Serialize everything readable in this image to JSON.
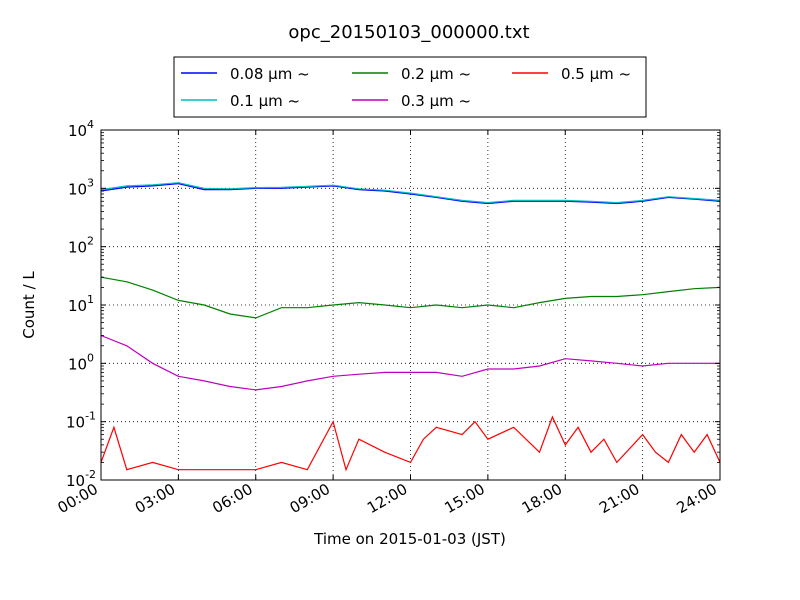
{
  "chart_data": {
    "type": "line",
    "title": "opc_20150103_000000.txt",
    "xlabel": "Time on 2015-01-03 (JST)",
    "ylabel": "Count / L",
    "yscale": "log",
    "xlim": [
      "00:00",
      "24:00"
    ],
    "ylim": [
      0.01,
      10000
    ],
    "x_ticks": [
      "00:00",
      "03:00",
      "06:00",
      "09:00",
      "12:00",
      "15:00",
      "18:00",
      "21:00",
      "24:00"
    ],
    "y_ticks": [
      {
        "base": "10",
        "exp": "-2",
        "value": 0.01
      },
      {
        "base": "10",
        "exp": "-1",
        "value": 0.1
      },
      {
        "base": "10",
        "exp": "0",
        "value": 1
      },
      {
        "base": "10",
        "exp": "1",
        "value": 10
      },
      {
        "base": "10",
        "exp": "2",
        "value": 100
      },
      {
        "base": "10",
        "exp": "3",
        "value": 1000
      },
      {
        "base": "10",
        "exp": "4",
        "value": 10000
      }
    ],
    "grid": true,
    "legend_position": "top-center",
    "series": [
      {
        "name": "0.08 μm ~",
        "color": "#0000ff",
        "points": [
          [
            "00:00",
            900
          ],
          [
            "01:00",
            1050
          ],
          [
            "02:00",
            1100
          ],
          [
            "03:00",
            1200
          ],
          [
            "04:00",
            950
          ],
          [
            "05:00",
            950
          ],
          [
            "06:00",
            1000
          ],
          [
            "07:00",
            1000
          ],
          [
            "08:00",
            1050
          ],
          [
            "09:00",
            1100
          ],
          [
            "10:00",
            950
          ],
          [
            "11:00",
            900
          ],
          [
            "12:00",
            800
          ],
          [
            "13:00",
            700
          ],
          [
            "14:00",
            600
          ],
          [
            "15:00",
            550
          ],
          [
            "16:00",
            600
          ],
          [
            "17:00",
            600
          ],
          [
            "18:00",
            600
          ],
          [
            "19:00",
            580
          ],
          [
            "20:00",
            550
          ],
          [
            "21:00",
            600
          ],
          [
            "22:00",
            700
          ],
          [
            "23:00",
            650
          ],
          [
            "24:00",
            600
          ]
        ]
      },
      {
        "name": "0.1 μm ~",
        "color": "#00bfbf",
        "points": [
          [
            "00:00",
            950
          ],
          [
            "01:00",
            1100
          ],
          [
            "02:00",
            1150
          ],
          [
            "03:00",
            1250
          ],
          [
            "04:00",
            1000
          ],
          [
            "05:00",
            980
          ],
          [
            "06:00",
            1030
          ],
          [
            "07:00",
            1040
          ],
          [
            "08:00",
            1080
          ],
          [
            "09:00",
            1130
          ],
          [
            "10:00",
            980
          ],
          [
            "11:00",
            930
          ],
          [
            "12:00",
            830
          ],
          [
            "13:00",
            720
          ],
          [
            "14:00",
            620
          ],
          [
            "15:00",
            570
          ],
          [
            "16:00",
            620
          ],
          [
            "17:00",
            620
          ],
          [
            "18:00",
            620
          ],
          [
            "19:00",
            600
          ],
          [
            "20:00",
            570
          ],
          [
            "21:00",
            620
          ],
          [
            "22:00",
            720
          ],
          [
            "23:00",
            670
          ],
          [
            "24:00",
            620
          ]
        ]
      },
      {
        "name": "0.2 μm ~",
        "color": "#008000",
        "points": [
          [
            "00:00",
            30
          ],
          [
            "01:00",
            25
          ],
          [
            "02:00",
            18
          ],
          [
            "03:00",
            12
          ],
          [
            "04:00",
            10
          ],
          [
            "05:00",
            7
          ],
          [
            "06:00",
            6
          ],
          [
            "07:00",
            9
          ],
          [
            "08:00",
            9
          ],
          [
            "09:00",
            10
          ],
          [
            "10:00",
            11
          ],
          [
            "11:00",
            10
          ],
          [
            "12:00",
            9
          ],
          [
            "13:00",
            10
          ],
          [
            "14:00",
            9
          ],
          [
            "15:00",
            10
          ],
          [
            "16:00",
            9
          ],
          [
            "17:00",
            11
          ],
          [
            "18:00",
            13
          ],
          [
            "19:00",
            14
          ],
          [
            "20:00",
            14
          ],
          [
            "21:00",
            15
          ],
          [
            "22:00",
            17
          ],
          [
            "23:00",
            19
          ],
          [
            "24:00",
            20
          ]
        ]
      },
      {
        "name": "0.3 μm ~",
        "color": "#bf00bf",
        "points": [
          [
            "00:00",
            3
          ],
          [
            "01:00",
            2
          ],
          [
            "02:00",
            1
          ],
          [
            "03:00",
            0.6
          ],
          [
            "04:00",
            0.5
          ],
          [
            "05:00",
            0.4
          ],
          [
            "06:00",
            0.35
          ],
          [
            "07:00",
            0.4
          ],
          [
            "08:00",
            0.5
          ],
          [
            "09:00",
            0.6
          ],
          [
            "10:00",
            0.65
          ],
          [
            "11:00",
            0.7
          ],
          [
            "12:00",
            0.7
          ],
          [
            "13:00",
            0.7
          ],
          [
            "14:00",
            0.6
          ],
          [
            "15:00",
            0.8
          ],
          [
            "16:00",
            0.8
          ],
          [
            "17:00",
            0.9
          ],
          [
            "18:00",
            1.2
          ],
          [
            "19:00",
            1.1
          ],
          [
            "20:00",
            1.0
          ],
          [
            "21:00",
            0.9
          ],
          [
            "22:00",
            1.0
          ],
          [
            "23:00",
            1.0
          ],
          [
            "24:00",
            1.0
          ]
        ]
      },
      {
        "name": "0.5 μm ~",
        "color": "#ff0000",
        "points": [
          [
            "00:00",
            0.02
          ],
          [
            "00:30",
            0.08
          ],
          [
            "01:00",
            0.015
          ],
          [
            "02:00",
            0.02
          ],
          [
            "03:00",
            0.015
          ],
          [
            "04:00",
            0.015
          ],
          [
            "05:00",
            0.015
          ],
          [
            "06:00",
            0.015
          ],
          [
            "07:00",
            0.02
          ],
          [
            "08:00",
            0.015
          ],
          [
            "09:00",
            0.1
          ],
          [
            "09:30",
            0.015
          ],
          [
            "10:00",
            0.05
          ],
          [
            "11:00",
            0.03
          ],
          [
            "12:00",
            0.02
          ],
          [
            "12:30",
            0.05
          ],
          [
            "13:00",
            0.08
          ],
          [
            "14:00",
            0.06
          ],
          [
            "14:30",
            0.1
          ],
          [
            "15:00",
            0.05
          ],
          [
            "16:00",
            0.08
          ],
          [
            "17:00",
            0.03
          ],
          [
            "17:30",
            0.12
          ],
          [
            "18:00",
            0.04
          ],
          [
            "18:30",
            0.08
          ],
          [
            "19:00",
            0.03
          ],
          [
            "19:30",
            0.05
          ],
          [
            "20:00",
            0.02
          ],
          [
            "21:00",
            0.06
          ],
          [
            "21:30",
            0.03
          ],
          [
            "22:00",
            0.02
          ],
          [
            "22:30",
            0.06
          ],
          [
            "23:00",
            0.03
          ],
          [
            "23:30",
            0.06
          ],
          [
            "24:00",
            0.02
          ]
        ]
      }
    ]
  }
}
